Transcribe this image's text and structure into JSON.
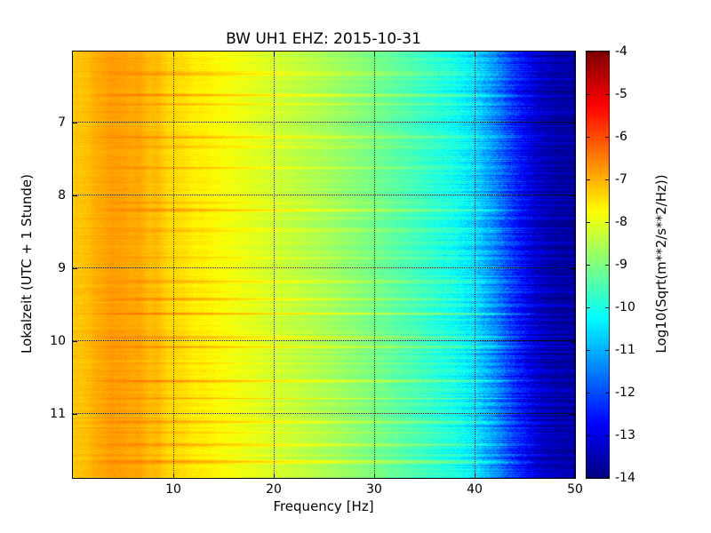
{
  "chart_data": {
    "type": "heatmap",
    "title": "BW UH1 EHZ: 2015-10-31",
    "xlabel": "Frequency [Hz]",
    "ylabel": "Lokalzeit (UTC + 1 Stunde)",
    "colorbar_label": "Log10(Sqrt(m**2/s**2/Hz))",
    "colormap": "jet",
    "grid": true,
    "x_range": [
      0,
      50
    ],
    "x_ticks": [
      10,
      20,
      30,
      40,
      50
    ],
    "y_range": [
      6.03,
      11.88
    ],
    "y_ticks": [
      7,
      8,
      9,
      10,
      11
    ],
    "value_range": [
      -14,
      -4
    ],
    "colorbar_ticks": [
      -4,
      -5,
      -6,
      -7,
      -8,
      -9,
      -10,
      -11,
      -12,
      -13,
      -14
    ],
    "spectrum_profile": {
      "frequency_hz": [
        0,
        1,
        2,
        3,
        4,
        5,
        6,
        8,
        10,
        15,
        20,
        25,
        30,
        35,
        38,
        40,
        42,
        44,
        46,
        48,
        50
      ],
      "log10_value": [
        -7.3,
        -7.1,
        -7.0,
        -6.9,
        -6.8,
        -6.8,
        -6.9,
        -7.1,
        -7.4,
        -7.8,
        -8.2,
        -8.6,
        -9.1,
        -9.7,
        -10.1,
        -10.6,
        -11.4,
        -12.4,
        -13.2,
        -13.6,
        -13.7
      ]
    },
    "transient_event_times_hours": [
      6.33,
      6.62,
      6.75,
      7.2,
      7.33,
      7.62,
      8.1,
      8.2,
      8.48,
      8.85,
      9.18,
      9.42,
      9.62,
      9.95,
      10.08,
      10.3,
      10.55,
      10.78,
      11.1,
      11.25,
      11.42,
      11.65
    ]
  },
  "colors": {
    "background": "#ffffff",
    "axes": "#000000"
  }
}
